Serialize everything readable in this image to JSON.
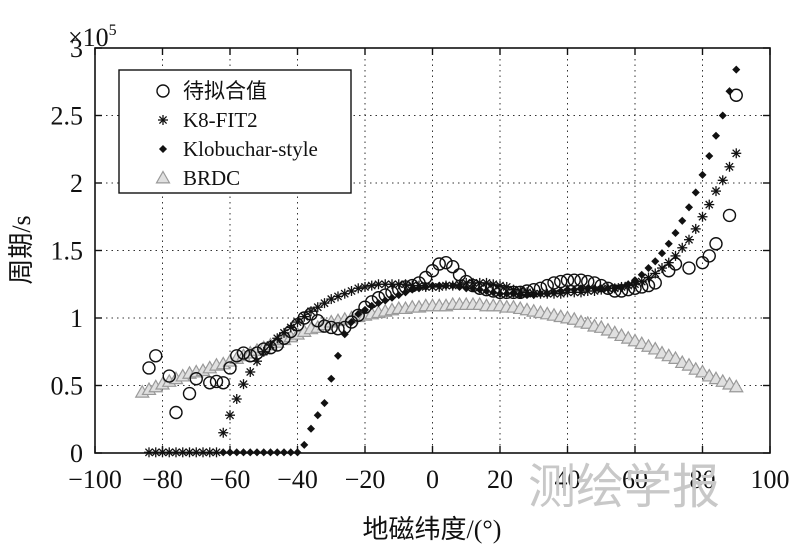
{
  "chart_data": {
    "type": "scatter",
    "xlabel": "地磁纬度/(°)",
    "ylabel": "周期/s",
    "xlim": [
      -100,
      100
    ],
    "ylim": [
      0,
      300000
    ],
    "y_exponent_label": "×10",
    "y_exponent_power": "5",
    "x_ticks": [
      -100,
      -80,
      -60,
      -40,
      -20,
      0,
      20,
      40,
      60,
      80,
      100
    ],
    "x_tick_labels": [
      "−100",
      "−80",
      "−60",
      "−40",
      "−20",
      "0",
      "20",
      "40",
      "60",
      "80",
      "100"
    ],
    "y_ticks": [
      0,
      50000,
      100000,
      150000,
      200000,
      250000,
      300000
    ],
    "y_tick_labels": [
      "0",
      "0.5",
      "1",
      "1.5",
      "2",
      "2.5",
      "3"
    ],
    "grid": true,
    "legend_position": "top-left",
    "series": [
      {
        "name": "待拟合值",
        "marker": "circle",
        "color": "#111111",
        "x": [
          -84,
          -82,
          -78,
          -76,
          -72,
          -70,
          -66,
          -64,
          -62,
          -60,
          -58,
          -56,
          -54,
          -52,
          -50,
          -48,
          -46,
          -44,
          -42,
          -40,
          -38,
          -36,
          -34,
          -32,
          -30,
          -28,
          -26,
          -24,
          -22,
          -20,
          -18,
          -16,
          -14,
          -12,
          -10,
          -8,
          -6,
          -4,
          -2,
          0,
          2,
          4,
          6,
          8,
          10,
          12,
          14,
          16,
          18,
          20,
          22,
          24,
          26,
          28,
          30,
          32,
          34,
          36,
          38,
          40,
          42,
          44,
          46,
          48,
          50,
          52,
          54,
          56,
          58,
          60,
          62,
          64,
          66,
          70,
          72,
          76,
          80,
          82,
          84,
          88,
          90
        ],
        "y": [
          63000,
          72000,
          57000,
          30000,
          44000,
          55000,
          52000,
          53000,
          52000,
          63000,
          72000,
          74000,
          72000,
          74000,
          77000,
          78000,
          80000,
          85000,
          90000,
          95000,
          100000,
          103000,
          98000,
          94000,
          93000,
          92000,
          93000,
          97000,
          102000,
          108000,
          112000,
          115000,
          117000,
          119000,
          121000,
          123000,
          124000,
          126000,
          130000,
          135000,
          140000,
          141000,
          138000,
          132000,
          127000,
          124000,
          122000,
          121000,
          120000,
          119000,
          119000,
          119000,
          119000,
          120000,
          121000,
          122000,
          124000,
          126000,
          127000,
          128000,
          128000,
          128000,
          127000,
          126000,
          124000,
          122000,
          120000,
          120000,
          121000,
          122000,
          123000,
          124000,
          126000,
          135000,
          140000,
          137000,
          141000,
          146000,
          155000,
          176000,
          265000
        ]
      },
      {
        "name": "K8-FIT2",
        "marker": "asterisk",
        "color": "#111111",
        "x": [
          -84,
          -82,
          -80,
          -78,
          -76,
          -74,
          -72,
          -70,
          -68,
          -66,
          -64,
          -62,
          -60,
          -58,
          -56,
          -54,
          -52,
          -50,
          -48,
          -46,
          -44,
          -42,
          -40,
          -38,
          -36,
          -34,
          -32,
          -30,
          -28,
          -26,
          -24,
          -22,
          -20,
          -18,
          -16,
          -14,
          -12,
          -10,
          -8,
          -6,
          -4,
          -2,
          0,
          2,
          4,
          6,
          8,
          10,
          12,
          14,
          16,
          18,
          20,
          22,
          24,
          26,
          28,
          30,
          32,
          34,
          36,
          38,
          40,
          42,
          44,
          46,
          48,
          50,
          52,
          54,
          56,
          58,
          60,
          62,
          64,
          66,
          68,
          70,
          72,
          74,
          76,
          78,
          80,
          82,
          84,
          86,
          88,
          90
        ],
        "y": [
          500,
          500,
          500,
          500,
          500,
          500,
          500,
          500,
          500,
          500,
          500,
          15000,
          28000,
          40000,
          51000,
          60000,
          68000,
          75000,
          80000,
          85000,
          89000,
          93000,
          97000,
          101000,
          105000,
          108000,
          111000,
          114000,
          116000,
          118000,
          120000,
          122000,
          123000,
          124000,
          125000,
          125000,
          125000,
          125000,
          125000,
          124000,
          124000,
          123000,
          123000,
          123000,
          124000,
          124000,
          125000,
          126000,
          126000,
          126000,
          126000,
          125000,
          124000,
          123000,
          121000,
          120000,
          119000,
          118000,
          118000,
          118000,
          118000,
          118000,
          119000,
          119000,
          119000,
          120000,
          120000,
          121000,
          122000,
          122000,
          123000,
          124000,
          125000,
          127000,
          130000,
          133000,
          137000,
          141000,
          146000,
          152000,
          158000,
          166000,
          175000,
          184000,
          194000,
          202000,
          212000,
          222000
        ]
      },
      {
        "name": "Klobuchar-style",
        "marker": "diamond",
        "color": "#111111",
        "x": [
          -62,
          -60,
          -58,
          -56,
          -54,
          -52,
          -50,
          -48,
          -46,
          -44,
          -42,
          -40,
          -38,
          -36,
          -34,
          -32,
          -30,
          -28,
          -26,
          -24,
          -22,
          -20,
          -18,
          -16,
          -14,
          -12,
          -10,
          -8,
          -6,
          -4,
          -2,
          0,
          2,
          4,
          6,
          8,
          10,
          12,
          14,
          16,
          18,
          20,
          22,
          24,
          26,
          28,
          30,
          32,
          34,
          36,
          38,
          40,
          42,
          44,
          46,
          48,
          50,
          52,
          54,
          56,
          58,
          60,
          62,
          64,
          66,
          68,
          70,
          72,
          74,
          76,
          78,
          80,
          82,
          84,
          86,
          88,
          90
        ],
        "y": [
          500,
          500,
          500,
          500,
          500,
          500,
          500,
          500,
          500,
          500,
          500,
          500,
          6000,
          18000,
          28000,
          37000,
          55000,
          72000,
          88000,
          97000,
          103000,
          106000,
          109000,
          111000,
          113000,
          115000,
          117000,
          119000,
          121000,
          122000,
          123000,
          124000,
          124000,
          124000,
          124000,
          123000,
          122000,
          122000,
          121000,
          120000,
          119000,
          118000,
          118000,
          118000,
          117000,
          117000,
          117000,
          118000,
          118000,
          119000,
          120000,
          121000,
          121000,
          122000,
          122000,
          122000,
          122000,
          122000,
          122000,
          123000,
          125000,
          128000,
          132000,
          137000,
          142000,
          148000,
          155000,
          163000,
          172000,
          182000,
          193000,
          206000,
          220000,
          235000,
          250000,
          268000,
          284000
        ]
      },
      {
        "name": "BRDC",
        "marker": "triangle",
        "color": "#999999",
        "x": [
          -86,
          -84,
          -82,
          -80,
          -78,
          -76,
          -74,
          -72,
          -70,
          -68,
          -66,
          -64,
          -62,
          -60,
          -58,
          -56,
          -54,
          -52,
          -50,
          -48,
          -46,
          -44,
          -42,
          -40,
          -38,
          -36,
          -34,
          -32,
          -30,
          -28,
          -26,
          -24,
          -22,
          -20,
          -18,
          -16,
          -14,
          -12,
          -10,
          -8,
          -6,
          -4,
          -2,
          0,
          2,
          4,
          6,
          8,
          10,
          12,
          14,
          16,
          18,
          20,
          22,
          24,
          26,
          28,
          30,
          32,
          34,
          36,
          38,
          40,
          42,
          44,
          46,
          48,
          50,
          52,
          54,
          56,
          58,
          60,
          62,
          64,
          66,
          68,
          70,
          72,
          74,
          76,
          78,
          80,
          82,
          84,
          86,
          88,
          90
        ],
        "y": [
          45000,
          47000,
          49000,
          51000,
          53000,
          55000,
          57000,
          59000,
          60000,
          61000,
          63000,
          65000,
          66000,
          68000,
          70000,
          72000,
          74000,
          76000,
          78000,
          80000,
          82000,
          84000,
          86000,
          88000,
          90000,
          92000,
          93000,
          95000,
          97000,
          98000,
          99000,
          100000,
          101000,
          102000,
          103000,
          104000,
          105000,
          106000,
          107000,
          107000,
          108000,
          108000,
          109000,
          109000,
          109000,
          109000,
          110000,
          110000,
          110000,
          110000,
          110000,
          109000,
          109000,
          109000,
          108000,
          108000,
          107000,
          106000,
          105000,
          104000,
          103000,
          102000,
          101000,
          100000,
          99000,
          97000,
          96000,
          94000,
          93000,
          91000,
          89000,
          87000,
          85000,
          83000,
          81000,
          79000,
          77000,
          74000,
          72000,
          70000,
          67000,
          65000,
          62000,
          60000,
          57000,
          55000,
          53000,
          51000,
          49000
        ]
      }
    ]
  },
  "watermark": "测绘学报"
}
